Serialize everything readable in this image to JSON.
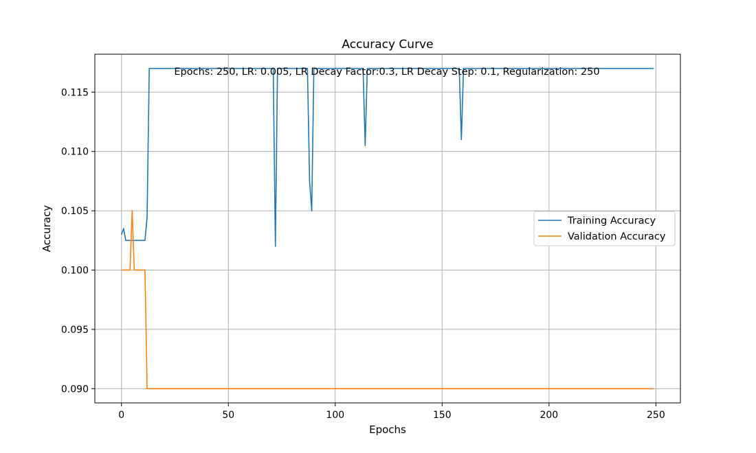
{
  "chart_data": {
    "type": "line",
    "title": "Accuracy Curve",
    "xlabel": "Epochs",
    "ylabel": "Accuracy",
    "annotation": "Epochs: 250, LR: 0.005, LR Decay Factor:0.3, LR Decay Step: 0.1, Regularization: 250",
    "xlim": [
      -12.45,
      261.45
    ],
    "ylim": [
      0.0888,
      0.1182
    ],
    "xticks": [
      0,
      50,
      100,
      150,
      200,
      250
    ],
    "xtick_labels": [
      "0",
      "50",
      "100",
      "150",
      "200",
      "250"
    ],
    "yticks": [
      0.09,
      0.095,
      0.1,
      0.105,
      0.11,
      0.115
    ],
    "ytick_labels": [
      "0.090",
      "0.095",
      "0.100",
      "0.105",
      "0.110",
      "0.115"
    ],
    "grid": true,
    "legend_position": "center-right",
    "series": [
      {
        "name": "Training Accuracy",
        "color": "#1f77b4",
        "points": [
          [
            0,
            0.103
          ],
          [
            1,
            0.1035
          ],
          [
            2,
            0.1025
          ],
          [
            3,
            0.1025
          ],
          [
            11,
            0.1025
          ],
          [
            12,
            0.1045
          ],
          [
            13,
            0.117
          ],
          [
            71,
            0.117
          ],
          [
            72,
            0.102
          ],
          [
            73,
            0.117
          ],
          [
            87,
            0.117
          ],
          [
            88,
            0.1075
          ],
          [
            89,
            0.105
          ],
          [
            90,
            0.117
          ],
          [
            113,
            0.117
          ],
          [
            114,
            0.1105
          ],
          [
            115,
            0.117
          ],
          [
            158,
            0.117
          ],
          [
            159,
            0.111
          ],
          [
            160,
            0.117
          ],
          [
            249,
            0.117
          ]
        ]
      },
      {
        "name": "Validation Accuracy",
        "color": "#ff7f0e",
        "points": [
          [
            0,
            0.1
          ],
          [
            4,
            0.1
          ],
          [
            5,
            0.105
          ],
          [
            6,
            0.1
          ],
          [
            11,
            0.1
          ],
          [
            12,
            0.09
          ],
          [
            249,
            0.09
          ]
        ]
      }
    ]
  }
}
